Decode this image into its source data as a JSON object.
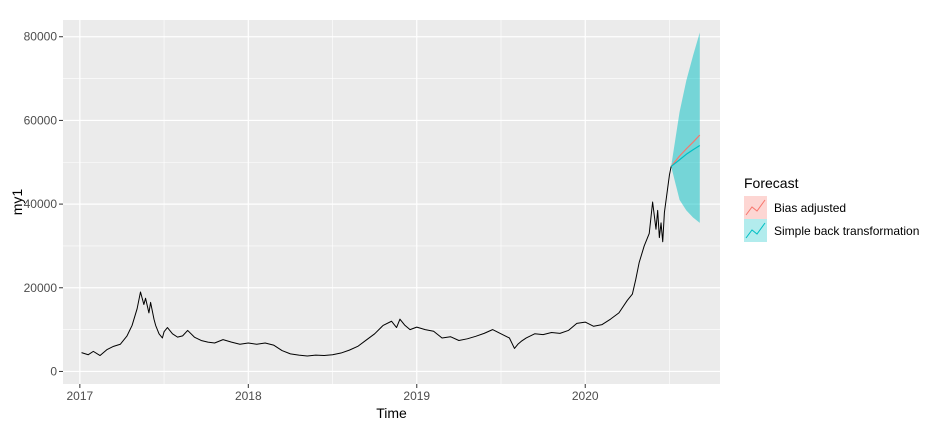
{
  "chart_data": {
    "type": "line",
    "title": "",
    "xlabel": "Time",
    "ylabel": "my1",
    "xlim": [
      2016.9,
      2020.8
    ],
    "ylim": [
      -3000,
      84000
    ],
    "x_ticks": [
      2017,
      2018,
      2019,
      2020
    ],
    "x_tick_labels": [
      "2017",
      "2018",
      "2019",
      "2020"
    ],
    "y_ticks": [
      0,
      20000,
      40000,
      60000,
      80000
    ],
    "y_tick_labels": [
      "0",
      "20000",
      "40000",
      "60000",
      "80000"
    ],
    "grid": true,
    "background": "#ebebeb",
    "legend": {
      "title": "Forecast",
      "position": "right",
      "entries": [
        {
          "label": "Bias adjusted",
          "line_color": "#f8766d",
          "fill_color": "#f8766d"
        },
        {
          "label": "Simple back transformation",
          "line_color": "#00bfc4",
          "fill_color": "#00bfc4"
        }
      ]
    },
    "series": [
      {
        "kind": "history",
        "color": "#000000",
        "x": [
          2017.01,
          2017.05,
          2017.08,
          2017.12,
          2017.16,
          2017.2,
          2017.24,
          2017.28,
          2017.31,
          2017.34,
          2017.36,
          2017.38,
          2017.39,
          2017.41,
          2017.42,
          2017.44,
          2017.45,
          2017.47,
          2017.49,
          2017.5,
          2017.52,
          2017.55,
          2017.58,
          2017.61,
          2017.64,
          2017.68,
          2017.72,
          2017.76,
          2017.8,
          2017.85,
          2017.9,
          2017.95,
          2018.0,
          2018.05,
          2018.1,
          2018.15,
          2018.2,
          2018.25,
          2018.3,
          2018.35,
          2018.4,
          2018.45,
          2018.5,
          2018.55,
          2018.6,
          2018.65,
          2018.7,
          2018.75,
          2018.8,
          2018.85,
          2018.88,
          2018.9,
          2018.93,
          2018.96,
          2019.0,
          2019.05,
          2019.1,
          2019.15,
          2019.2,
          2019.25,
          2019.3,
          2019.35,
          2019.4,
          2019.45,
          2019.5,
          2019.55,
          2019.58,
          2019.6,
          2019.62,
          2019.65,
          2019.7,
          2019.75,
          2019.8,
          2019.85,
          2019.9,
          2019.95,
          2020.0,
          2020.05,
          2020.1,
          2020.15,
          2020.2,
          2020.25,
          2020.28,
          2020.3,
          2020.32,
          2020.35,
          2020.38,
          2020.4,
          2020.42,
          2020.43,
          2020.44,
          2020.45,
          2020.46,
          2020.47,
          2020.48,
          2020.49,
          2020.5,
          2020.51
        ],
        "y": [
          4500,
          4000,
          4800,
          3800,
          5200,
          6000,
          6500,
          8500,
          11000,
          15000,
          19000,
          16000,
          17500,
          14000,
          16500,
          12500,
          11000,
          9000,
          8000,
          9500,
          10500,
          9000,
          8200,
          8500,
          9800,
          8200,
          7400,
          7000,
          6800,
          7600,
          7000,
          6500,
          6800,
          6500,
          6800,
          6300,
          5000,
          4200,
          3900,
          3700,
          3900,
          3800,
          4000,
          4400,
          5100,
          6000,
          7500,
          9000,
          11000,
          12000,
          10500,
          12500,
          11000,
          10000,
          10600,
          10000,
          9600,
          8000,
          8300,
          7400,
          7800,
          8400,
          9100,
          10000,
          9000,
          8000,
          5500,
          6500,
          7200,
          8000,
          9000,
          8800,
          9300,
          9100,
          9800,
          11500,
          11800,
          10800,
          11200,
          12500,
          14000,
          17000,
          18500,
          22000,
          26000,
          30000,
          33000,
          40500,
          34000,
          38500,
          32000,
          35500,
          31000,
          38000,
          41000,
          44000,
          47000,
          49000
        ]
      },
      {
        "name": "Bias adjusted",
        "kind": "forecast",
        "color": "#f8766d",
        "x": [
          2020.51,
          2020.56,
          2020.6,
          2020.64,
          2020.68
        ],
        "y": [
          49000,
          51500,
          53200,
          54800,
          56500
        ],
        "interval_upper": [
          49000,
          51500,
          53200,
          54800,
          56500
        ],
        "interval_lower": [
          49000,
          51500,
          53200,
          54800,
          56500
        ]
      },
      {
        "name": "Simple back transformation",
        "kind": "forecast",
        "color": "#00bfc4",
        "x": [
          2020.51,
          2020.56,
          2020.6,
          2020.64,
          2020.68
        ],
        "y": [
          49000,
          50600,
          51900,
          53000,
          54000
        ],
        "interval_upper": [
          49000,
          62000,
          69500,
          75500,
          81000
        ],
        "interval_lower": [
          49000,
          41000,
          38500,
          36800,
          35500
        ]
      }
    ]
  }
}
